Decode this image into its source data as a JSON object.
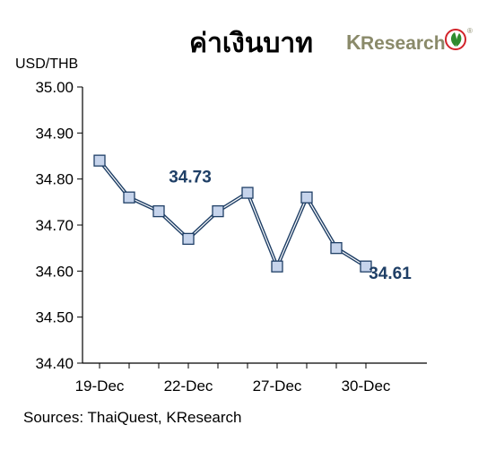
{
  "header": {
    "title": "ค่าเงินบาท",
    "brand": {
      "k": "K",
      "rest": "Research",
      "registered": "®"
    }
  },
  "colors": {
    "line": "#1f3f66",
    "marker_fill": "#c6d4ec",
    "marker_stroke": "#1f3f66",
    "data_label": "#1f3f66",
    "brand": "#8a8a6a",
    "logo_green": "#2e8b2e",
    "logo_red": "#d2232a"
  },
  "footer": {
    "source": "Sources: ThaiQuest, KResearch"
  },
  "chart_data": {
    "type": "line",
    "ylabel": "USD/THB",
    "ylim": [
      34.4,
      35.0
    ],
    "yticks": [
      "34.40",
      "34.50",
      "34.60",
      "34.70",
      "34.80",
      "34.90",
      "35.00"
    ],
    "x_tick_labels": [
      "19-Dec",
      "22-Dec",
      "27-Dec",
      "30-Dec"
    ],
    "x_tick_positions": [
      0,
      3,
      6,
      9
    ],
    "series": [
      {
        "values": [
          34.84,
          34.76,
          34.73,
          34.67,
          34.73,
          34.77,
          34.61,
          34.76,
          34.65,
          34.61
        ]
      }
    ],
    "annotations": [
      {
        "text": "34.73",
        "index": 4
      },
      {
        "text": "34.61",
        "index": 9
      }
    ],
    "grid": false
  }
}
